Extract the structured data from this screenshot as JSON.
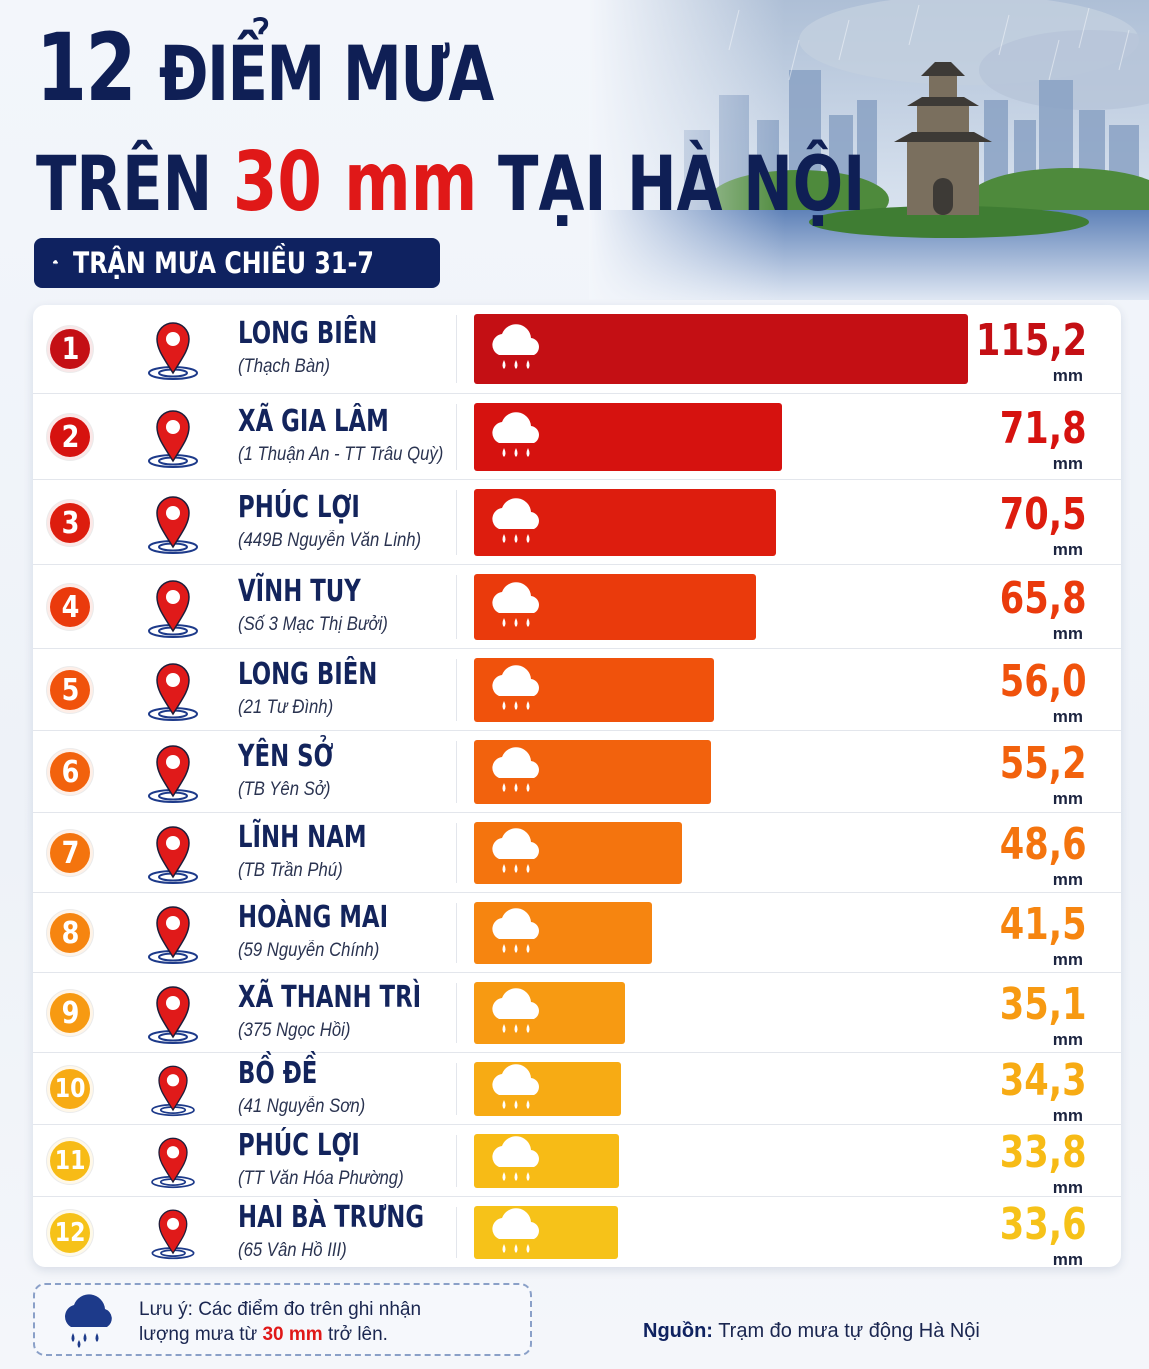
{
  "title": {
    "line1_number": "12",
    "line1_text": "ĐIỂM MƯA",
    "line2_prefix": "TRÊN",
    "line2_highlight": "30 mm",
    "line2_suffix": "TẠI HÀ NỘI"
  },
  "subtitle": {
    "label": "TRẬN MƯA CHIỀU 31-7",
    "icon": "rain-cloud-icon"
  },
  "chart_data": {
    "type": "bar",
    "orientation": "horizontal",
    "unit": "mm",
    "bar_icon": "rain-cloud-icon",
    "location_icon": "map-pin-icon",
    "rows": [
      {
        "rank": "1",
        "name": "LONG BIÊN",
        "detail": "(Thạch Bàn)",
        "value": 115.2,
        "value_label": "115,2",
        "color": "#c40f14"
      },
      {
        "rank": "2",
        "name": "XÃ GIA LÂM",
        "detail": "(1 Thuận An - TT Trâu Quỳ)",
        "value": 71.8,
        "value_label": "71,8",
        "color": "#d6120f"
      },
      {
        "rank": "3",
        "name": "PHÚC LỢI",
        "detail": "(449B Nguyễn Văn Linh)",
        "value": 70.5,
        "value_label": "70,5",
        "color": "#dd1d0e"
      },
      {
        "rank": "4",
        "name": "VĨNH TUY",
        "detail": "(Số 3 Mạc Thị Bưởi)",
        "value": 65.8,
        "value_label": "65,8",
        "color": "#ea3a0c"
      },
      {
        "rank": "5",
        "name": "LONG BIÊN",
        "detail": "(21 Tư Đình)",
        "value": 56.0,
        "value_label": "56,0",
        "color": "#f0520c"
      },
      {
        "rank": "6",
        "name": "YÊN SỞ",
        "detail": "(TB Yên Sở)",
        "value": 55.2,
        "value_label": "55,2",
        "color": "#f2620d"
      },
      {
        "rank": "7",
        "name": "LĨNH NAM",
        "detail": "(TB Trần Phú)",
        "value": 48.6,
        "value_label": "48,6",
        "color": "#f4740e"
      },
      {
        "rank": "8",
        "name": "HOÀNG MAI",
        "detail": "(59 Nguyễn Chính)",
        "value": 41.5,
        "value_label": "41,5",
        "color": "#f68510"
      },
      {
        "rank": "9",
        "name": "XÃ THANH TRÌ",
        "detail": "(375 Ngọc Hồi)",
        "value": 35.1,
        "value_label": "35,1",
        "color": "#f79a12"
      },
      {
        "rank": "10",
        "name": "BỒ ĐỀ",
        "detail": "(41 Nguyễn Sơn)",
        "value": 34.3,
        "value_label": "34,3",
        "color": "#f7ab14"
      },
      {
        "rank": "11",
        "name": "PHÚC LỢI",
        "detail": "(TT Văn Hóa Phường)",
        "value": 33.8,
        "value_label": "33,8",
        "color": "#f7bb16"
      },
      {
        "rank": "12",
        "name": "HAI BÀ TRƯNG",
        "detail": "(65 Vân Hồ III)",
        "value": 33.6,
        "value_label": "33,6",
        "color": "#f6c219"
      }
    ]
  },
  "note": {
    "prefix": "Lưu ý:",
    "line1_rest": "Các điểm đo trên ghi nhận",
    "line2_a": "lượng mưa từ",
    "line2_highlight": "30 mm",
    "line2_b": "trở lên.",
    "icon": "rain-cloud-icon"
  },
  "source": {
    "label": "Nguồn:",
    "text": "Trạm đo mưa tự động Hà Nội"
  },
  "colors": {
    "navy": "#0f2260",
    "accent": "#e01818"
  }
}
